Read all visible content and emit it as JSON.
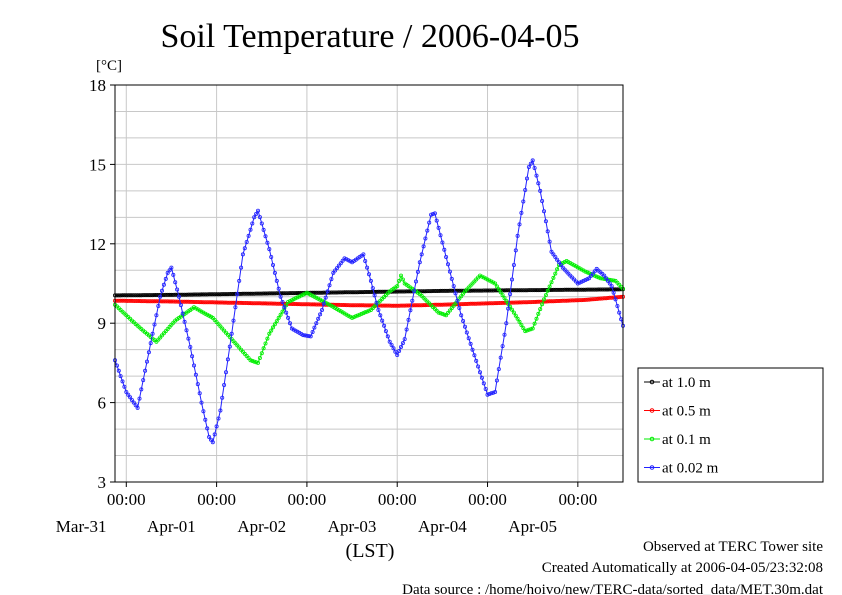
{
  "chart_data": {
    "type": "line",
    "title": "Soil Temperature / 2006-04-05",
    "ylabel": "[°C]",
    "xlabel": "(LST)",
    "ylim": [
      3,
      18
    ],
    "y_ticks": [
      3,
      6,
      9,
      12,
      15,
      18
    ],
    "xlim": [
      -15,
      120
    ],
    "x_hours_desc": "hours since Mar-31 00:00",
    "x_tick_labels": [
      {
        "hour": 12,
        "time": "00:00",
        "date": "Mar-31"
      },
      {
        "hour": 36,
        "time": "00:00",
        "date": "Apr-01"
      },
      {
        "hour": 60,
        "time": "00:00",
        "date": "Apr-02"
      },
      {
        "hour": 84,
        "time": "00:00",
        "date": "Apr-03"
      },
      {
        "hour": 108,
        "time": "00:00",
        "date": "Apr-04"
      },
      {
        "hour": 132,
        "time": "00:00",
        "date": "Apr-05"
      }
    ],
    "grid": true,
    "legend_position": "right",
    "series": [
      {
        "name": "at 1.0 m",
        "color": "#000000",
        "points": [
          [
            -15,
            10.05
          ],
          [
            0,
            10.07
          ],
          [
            24,
            10.12
          ],
          [
            48,
            10.17
          ],
          [
            72,
            10.22
          ],
          [
            96,
            10.25
          ],
          [
            120,
            10.28
          ]
        ]
      },
      {
        "name": "at 0.5 m",
        "color": "#ff0000",
        "points": [
          [
            -15,
            9.85
          ],
          [
            0,
            9.82
          ],
          [
            24,
            9.75
          ],
          [
            48,
            9.68
          ],
          [
            60,
            9.66
          ],
          [
            72,
            9.7
          ],
          [
            96,
            9.8
          ],
          [
            110,
            9.88
          ],
          [
            120,
            10.0
          ]
        ]
      },
      {
        "name": "at 0.1 m",
        "color": "#00ee00",
        "points": [
          [
            -15,
            9.7
          ],
          [
            -9,
            8.9
          ],
          [
            -4,
            8.3
          ],
          [
            1,
            9.1
          ],
          [
            6,
            9.6
          ],
          [
            11,
            9.2
          ],
          [
            16,
            8.4
          ],
          [
            21,
            7.6
          ],
          [
            23,
            7.5
          ],
          [
            26,
            8.6
          ],
          [
            31,
            9.8
          ],
          [
            36,
            10.15
          ],
          [
            42,
            9.7
          ],
          [
            48,
            9.2
          ],
          [
            53,
            9.5
          ],
          [
            58,
            10.2
          ],
          [
            60,
            10.4
          ],
          [
            61,
            10.8
          ],
          [
            62,
            10.5
          ],
          [
            66,
            10.1
          ],
          [
            71,
            9.4
          ],
          [
            73,
            9.3
          ],
          [
            78,
            10.2
          ],
          [
            82,
            10.8
          ],
          [
            86,
            10.5
          ],
          [
            91,
            9.4
          ],
          [
            94,
            8.7
          ],
          [
            96,
            8.8
          ],
          [
            99,
            9.9
          ],
          [
            103,
            11.2
          ],
          [
            105,
            11.35
          ],
          [
            110,
            10.95
          ],
          [
            114,
            10.7
          ],
          [
            118,
            10.6
          ],
          [
            120,
            10.3
          ]
        ]
      },
      {
        "name": "at 0.02 m",
        "color": "#2222ff",
        "points": [
          [
            -15,
            7.6
          ],
          [
            -12,
            6.4
          ],
          [
            -9,
            5.8
          ],
          [
            -6,
            7.9
          ],
          [
            -3,
            10.0
          ],
          [
            -1,
            10.9
          ],
          [
            0,
            11.1
          ],
          [
            2,
            10.0
          ],
          [
            5,
            8.1
          ],
          [
            8,
            6.0
          ],
          [
            10,
            4.7
          ],
          [
            11,
            4.5
          ],
          [
            13,
            5.7
          ],
          [
            16,
            8.6
          ],
          [
            19,
            11.6
          ],
          [
            22,
            13.0
          ],
          [
            23,
            13.25
          ],
          [
            26,
            11.8
          ],
          [
            29,
            10.0
          ],
          [
            32,
            8.8
          ],
          [
            35,
            8.55
          ],
          [
            37,
            8.5
          ],
          [
            40,
            9.5
          ],
          [
            43,
            10.9
          ],
          [
            46,
            11.45
          ],
          [
            48,
            11.3
          ],
          [
            51,
            11.6
          ],
          [
            53,
            10.6
          ],
          [
            55,
            9.5
          ],
          [
            58,
            8.3
          ],
          [
            60,
            7.8
          ],
          [
            62,
            8.4
          ],
          [
            66,
            11.3
          ],
          [
            69,
            13.1
          ],
          [
            70,
            13.15
          ],
          [
            73,
            11.5
          ],
          [
            77,
            9.3
          ],
          [
            80,
            8.0
          ],
          [
            84,
            6.3
          ],
          [
            86,
            6.4
          ],
          [
            89,
            9.0
          ],
          [
            92,
            12.3
          ],
          [
            95,
            14.9
          ],
          [
            96,
            15.15
          ],
          [
            98,
            14.0
          ],
          [
            101,
            11.7
          ],
          [
            104,
            11.1
          ],
          [
            108,
            10.5
          ],
          [
            111,
            10.7
          ],
          [
            113,
            11.05
          ],
          [
            115,
            10.8
          ],
          [
            117,
            10.4
          ],
          [
            120,
            8.9
          ]
        ]
      }
    ]
  },
  "footer": {
    "line1": "Observed at TERC Tower site",
    "line2": "Created Automatically at 2006-04-05/23:32:08",
    "line3": "Data source : /home/hoivo/new/TERC-data/sorted_data/MET.30m.dat"
  }
}
